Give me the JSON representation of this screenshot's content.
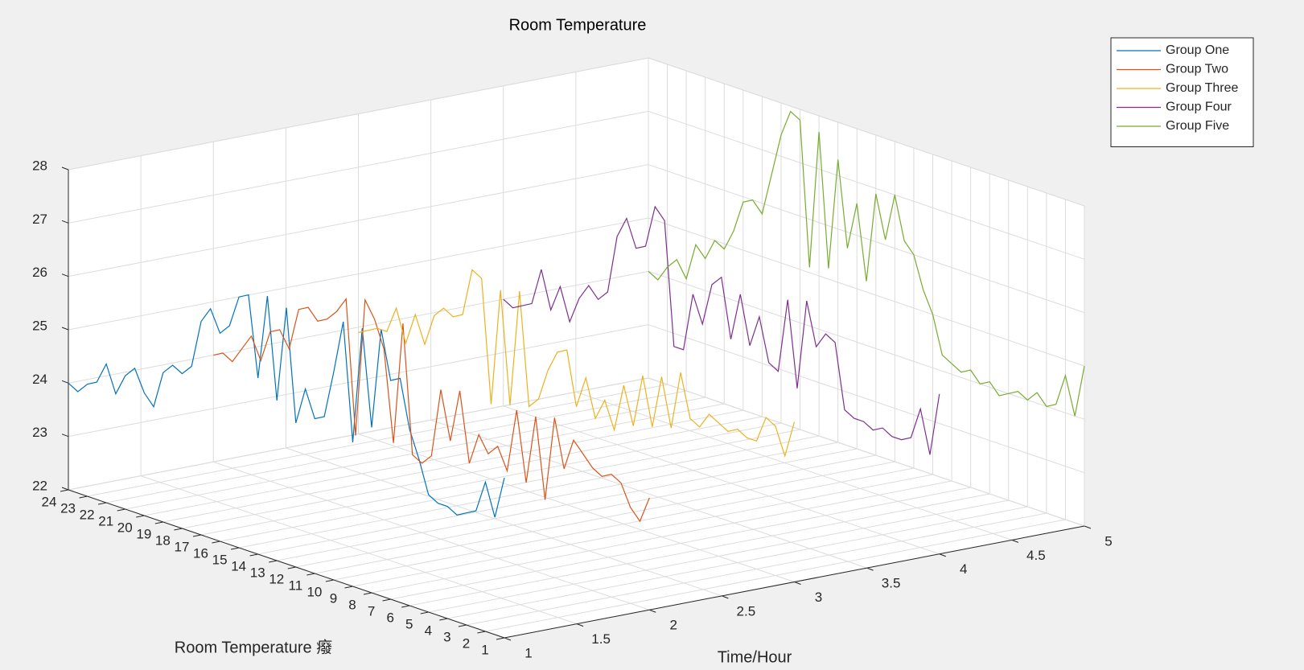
{
  "chart_data": {
    "type": "line3d",
    "title": "Room Temperature",
    "xlabel": "Time/Hour",
    "ylabel": "Room Temperature 癈",
    "xlim": [
      1,
      5
    ],
    "ylim": [
      1,
      24
    ],
    "zlim": [
      22,
      28
    ],
    "xticks": [
      1,
      1.5,
      2,
      2.5,
      3,
      3.5,
      4,
      4.5,
      5
    ],
    "yticks": [
      1,
      2,
      3,
      4,
      5,
      6,
      7,
      8,
      9,
      10,
      11,
      12,
      13,
      14,
      15,
      16,
      17,
      18,
      19,
      20,
      21,
      22,
      23,
      24
    ],
    "zticks": [
      22,
      23,
      24,
      25,
      26,
      27,
      28
    ],
    "grid": true,
    "legend": "northeast",
    "y": [
      24,
      23.5,
      23,
      22.5,
      22,
      21.5,
      21,
      20.5,
      20,
      19.5,
      19,
      18.5,
      18,
      17.5,
      17,
      16.5,
      16,
      15.5,
      15,
      14.5,
      14,
      13.5,
      13,
      12.5,
      12,
      11.5,
      11,
      10.5,
      10,
      9.5,
      9,
      8.5,
      8,
      7.5,
      7,
      6.5,
      6,
      5.5,
      5,
      4.5,
      4,
      3.5,
      3,
      2.5,
      2,
      1.5,
      1
    ],
    "series": [
      {
        "name": "Group One",
        "color": "#0072bd",
        "x": 1,
        "values": [
          24.0,
          23.9,
          24.1,
          24.2,
          24.6,
          24.1,
          24.5,
          24.7,
          24.3,
          24.1,
          24.8,
          25.0,
          24.9,
          25.1,
          26.0,
          26.3,
          25.9,
          26.1,
          26.7,
          26.8,
          25.3,
          26.9,
          25.0,
          26.8,
          24.7,
          25.4,
          24.9,
          25.0,
          25.9,
          26.9,
          24.7,
          26.9,
          25.1,
          27.0,
          26.1,
          26.2,
          25.3,
          24.8,
          24.2,
          24.1,
          24.1,
          24.0,
          24.1,
          24.2,
          24.8,
          24.2,
          25.0
        ]
      },
      {
        "name": "Group Two",
        "color": "#d95319",
        "x": 2,
        "values": [
          24.0,
          24.1,
          24.0,
          24.3,
          24.6,
          24.2,
          24.8,
          24.9,
          24.6,
          25.4,
          25.5,
          25.3,
          25.4,
          25.6,
          25.9,
          23.4,
          26.0,
          25.7,
          25.2,
          23.5,
          25.8,
          23.4,
          23.3,
          23.5,
          24.8,
          23.9,
          24.9,
          23.6,
          24.2,
          23.9,
          24.1,
          23.7,
          24.9,
          23.6,
          24.9,
          23.4,
          25.0,
          24.1,
          24.7,
          24.5,
          24.3,
          24.2,
          24.3,
          24.2,
          23.8,
          23.6,
          24.1
        ]
      },
      {
        "name": "Group Three",
        "color": "#edb120",
        "x": 3,
        "values": [
          23.9,
          24.0,
          24.1,
          24.1,
          24.6,
          24.0,
          24.6,
          24.1,
          24.7,
          24.9,
          24.8,
          24.9,
          25.8,
          25.7,
          23.4,
          25.6,
          23.5,
          25.7,
          23.6,
          23.8,
          24.4,
          24.8,
          24.9,
          23.9,
          24.5,
          23.8,
          24.2,
          23.7,
          24.6,
          23.9,
          24.9,
          24.0,
          25.0,
          24.1,
          25.2,
          24.4,
          24.3,
          24.6,
          24.5,
          24.4,
          24.5,
          24.4,
          24.4,
          24.9,
          24.8,
          24.3,
          25.0
        ]
      },
      {
        "name": "Group Four",
        "color": "#7e2f8e",
        "x": 4,
        "values": [
          24.0,
          23.9,
          24.0,
          24.1,
          24.8,
          24.1,
          24.6,
          24.0,
          24.5,
          24.8,
          24.6,
          24.8,
          25.9,
          26.3,
          25.8,
          25.9,
          26.7,
          26.5,
          24.2,
          24.2,
          25.3,
          24.8,
          25.6,
          25.8,
          24.7,
          25.6,
          24.7,
          25.3,
          24.5,
          24.4,
          25.8,
          24.2,
          25.9,
          25.1,
          25.4,
          25.3,
          24.1,
          24.0,
          24.0,
          23.9,
          24.0,
          23.9,
          23.9,
          24.0,
          24.6,
          23.8,
          25.0
        ]
      },
      {
        "name": "Group Five",
        "color": "#77ac30",
        "x": 5,
        "values": [
          24.0,
          23.9,
          24.2,
          24.4,
          24.1,
          24.8,
          24.6,
          25.0,
          24.9,
          25.3,
          25.9,
          26.0,
          25.8,
          26.6,
          27.4,
          27.9,
          27.8,
          25.1,
          27.7,
          25.2,
          27.3,
          25.7,
          26.6,
          25.2,
          26.9,
          26.1,
          27.0,
          26.2,
          26.0,
          25.4,
          25.0,
          24.3,
          24.2,
          24.1,
          24.2,
          24.0,
          24.1,
          23.9,
          24.0,
          24.1,
          24.0,
          24.2,
          24.0,
          24.1,
          24.7,
          24.0,
          25.0
        ]
      }
    ]
  }
}
